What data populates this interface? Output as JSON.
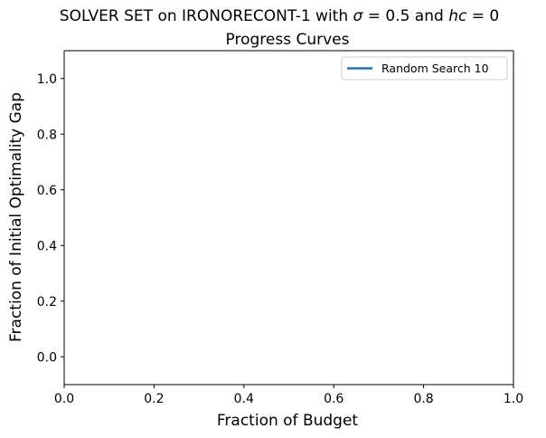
{
  "chart_data": {
    "type": "line",
    "title_prefix": "SOLVER SET on IRONORECONT-1 with ",
    "title_sigma": "σ",
    "title_sigma_value": " = 0.5 and ",
    "title_hc": "hc",
    "title_hc_value": " = 0",
    "subtitle": "Progress Curves",
    "xlabel": "Fraction of Budget",
    "ylabel": "Fraction of Initial Optimality Gap",
    "xlim": [
      0.0,
      1.0
    ],
    "ylim": [
      -0.1,
      1.1
    ],
    "x_ticks": [
      0.0,
      0.2,
      0.4,
      0.6,
      0.8,
      1.0
    ],
    "x_tick_labels": [
      "0.0",
      "0.2",
      "0.4",
      "0.6",
      "0.8",
      "1.0"
    ],
    "y_ticks": [
      0.0,
      0.2,
      0.4,
      0.6,
      0.8,
      1.0
    ],
    "y_tick_labels": [
      "0.0",
      "0.2",
      "0.4",
      "0.6",
      "0.8",
      "1.0"
    ],
    "grid": false,
    "legend_position": "top-right",
    "series": [
      {
        "name": "Random Search 10",
        "color": "#1f77b4",
        "x": [],
        "y": []
      }
    ]
  }
}
